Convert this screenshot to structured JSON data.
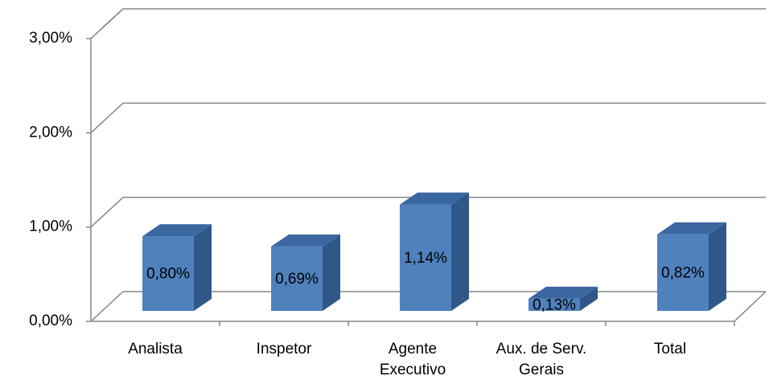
{
  "chart_data": {
    "type": "bar3d",
    "categories": [
      "Analista",
      "Inspetor",
      "Agente Executivo",
      "Aux. de Serv. Gerais",
      "Total"
    ],
    "values": [
      0.8,
      0.69,
      1.14,
      0.13,
      0.82
    ],
    "value_labels": [
      "0,80%",
      "0,69%",
      "1,14%",
      "0,13%",
      "0,82%"
    ],
    "color": "#4f81bd",
    "ylim": [
      0,
      3
    ],
    "yticks": [
      {
        "value": 0,
        "label": "0,00%"
      },
      {
        "value": 1,
        "label": "1,00%"
      },
      {
        "value": 2,
        "label": "2,00%"
      },
      {
        "value": 3,
        "label": "3,00%"
      }
    ],
    "grid": true
  }
}
